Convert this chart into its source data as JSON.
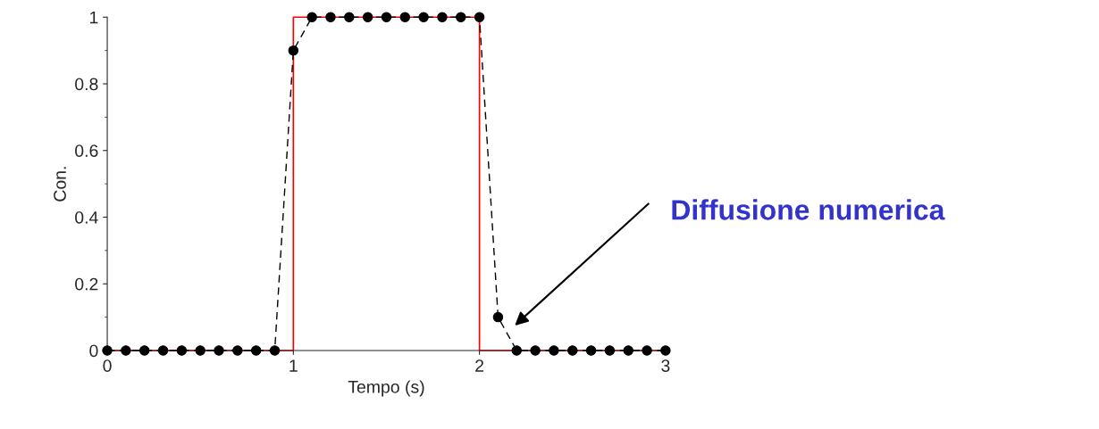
{
  "chart_data": {
    "type": "line",
    "xlabel": "Tempo (s)",
    "ylabel": "Con.",
    "xlim": [
      0,
      3
    ],
    "xticks": [
      0,
      1,
      2,
      3
    ],
    "ylim": [
      0,
      1
    ],
    "yticks": [
      0,
      0.2,
      0.4,
      0.6,
      0.8,
      1
    ],
    "series": [
      {
        "color": "#000000",
        "marker": "circle",
        "line_style": "dashed",
        "x": [
          0,
          0.1,
          0.2,
          0.3,
          0.4,
          0.5,
          0.6,
          0.7,
          0.8,
          0.9,
          1.0,
          1.1,
          1.2,
          1.3,
          1.4,
          1.5,
          1.6,
          1.7,
          1.8,
          1.9,
          2.0,
          2.1,
          2.2,
          2.3,
          2.4,
          2.5,
          2.6,
          2.7,
          2.8,
          2.9,
          3.0
        ],
        "values": [
          0,
          0,
          0,
          0,
          0,
          0,
          0,
          0,
          0,
          0,
          0.9,
          1,
          1,
          1,
          1,
          1,
          1,
          1,
          1,
          1,
          1,
          0.1,
          0,
          0,
          0,
          0,
          0,
          0,
          0,
          0,
          0
        ]
      },
      {
        "color": "#ff0000",
        "marker": "none",
        "line_style": "solid",
        "x": [
          0,
          1,
          1,
          2,
          2,
          3
        ],
        "values": [
          0,
          0,
          1,
          1,
          0,
          0
        ]
      }
    ],
    "annotations": [
      "Diffusione numerica"
    ],
    "grid": false,
    "legend": false
  }
}
